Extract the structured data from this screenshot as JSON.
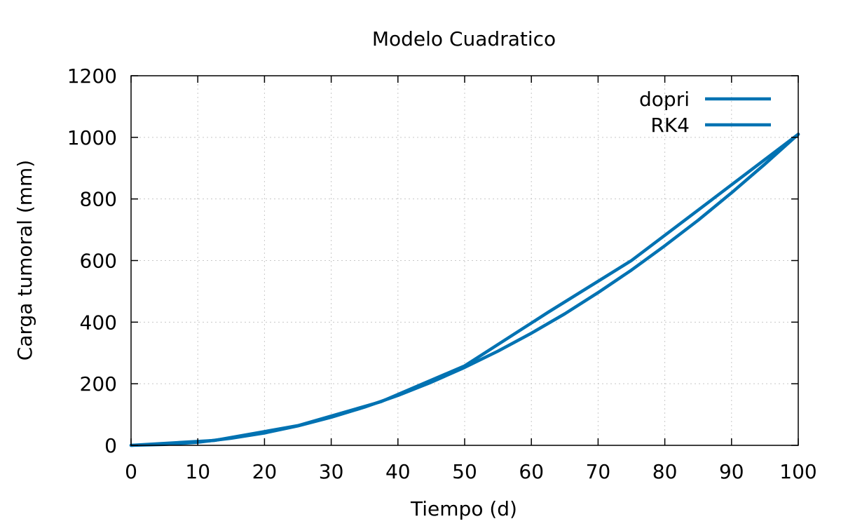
{
  "chart_data": {
    "type": "line",
    "title": "Modelo Cuadratico",
    "xlabel": "Tiempo (d)",
    "ylabel": "Carga tumoral (mm)",
    "xlim": [
      0,
      100
    ],
    "ylim": [
      0,
      1200
    ],
    "xticks": [
      0,
      10,
      20,
      30,
      40,
      50,
      60,
      70,
      80,
      90,
      100
    ],
    "yticks": [
      0,
      200,
      400,
      600,
      800,
      1000,
      1200
    ],
    "grid": true,
    "legend_position": "top-right",
    "series": [
      {
        "name": "dopri",
        "color": "#0072b2",
        "x": [
          0,
          5,
          10,
          15,
          20,
          25,
          30,
          35,
          40,
          45,
          50,
          55,
          60,
          65,
          70,
          75,
          80,
          85,
          90,
          95,
          100
        ],
        "y": [
          0,
          3,
          10,
          23,
          40,
          63,
          91,
          124,
          162,
          205,
          253,
          306,
          364,
          427,
          496,
          569,
          648,
          731,
          820,
          913,
          1010
        ]
      },
      {
        "name": "RK4",
        "color": "#0072b2",
        "x": [
          0,
          12.5,
          25,
          37.5,
          50,
          62.5,
          75,
          87.5,
          100
        ],
        "y": [
          0,
          16,
          64,
          142,
          258,
          432,
          600,
          805,
          1010
        ]
      }
    ]
  }
}
